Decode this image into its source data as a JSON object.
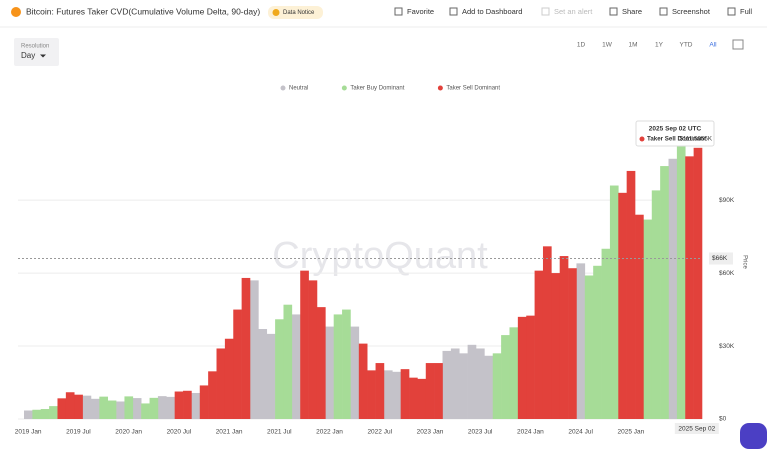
{
  "header": {
    "title": "Bitcoin: Futures Taker CVD(Cumulative Volume Delta, 90-day)",
    "badge": "Data Notice",
    "toolbar": [
      "Favorite",
      "Add to Dashboard",
      "Set an alert",
      "Share",
      "Screenshot",
      "Full"
    ]
  },
  "controls": {
    "resolution_label": "Resolution",
    "resolution_value": "Day",
    "ranges": [
      "1D",
      "1W",
      "1M",
      "1Y",
      "YTD",
      "All"
    ],
    "active_range": "All"
  },
  "watermark": "CryptoQuant",
  "chart_data": {
    "type": "bar",
    "y_title": "Price",
    "grid": true,
    "legend": "top",
    "categories": [
      "2019 Jan",
      null,
      null,
      null,
      null,
      null,
      "2019 Jul",
      null,
      null,
      null,
      null,
      null,
      "2020 Jan",
      null,
      null,
      null,
      null,
      null,
      "2020 Jul",
      null,
      null,
      null,
      null,
      null,
      "2021 Jan",
      null,
      null,
      null,
      null,
      null,
      "2021 Jul",
      null,
      null,
      null,
      null,
      null,
      "2022 Jan",
      null,
      null,
      null,
      null,
      null,
      "2022 Jul",
      null,
      null,
      null,
      null,
      null,
      "2023 Jan",
      null,
      null,
      null,
      null,
      null,
      "2023 Jul",
      null,
      null,
      null,
      null,
      null,
      "2024 Jan",
      null,
      null,
      null,
      null,
      null,
      "2024 Jul",
      null,
      null,
      null,
      null,
      null,
      "2025 Jan",
      null,
      null,
      null,
      null,
      null,
      null,
      null,
      "2025 Sep 02"
    ],
    "series": [
      {
        "name": "Neutral",
        "color": "#c4c2c9",
        "values": [
          3500,
          null,
          null,
          null,
          null,
          null,
          null,
          9600,
          8300,
          null,
          null,
          7200,
          null,
          8600,
          null,
          null,
          9400,
          9100,
          null,
          null,
          10700,
          null,
          null,
          null,
          null,
          null,
          null,
          57000,
          37000,
          35000,
          null,
          null,
          43000,
          null,
          null,
          null,
          38000,
          null,
          null,
          38000,
          null,
          null,
          null,
          20000,
          19400,
          null,
          null,
          null,
          null,
          null,
          28000,
          29000,
          27000,
          30500,
          29000,
          26000,
          null,
          null,
          null,
          null,
          null,
          null,
          null,
          null,
          null,
          null,
          64000,
          null,
          null,
          null,
          null,
          null,
          null,
          null,
          null,
          null,
          null,
          107000,
          null,
          null,
          null
        ]
      },
      {
        "name": "Taker Buy Dominant",
        "color": "#a6dc97",
        "values": [
          null,
          3800,
          4100,
          5300,
          null,
          null,
          null,
          null,
          null,
          9200,
          7600,
          null,
          9300,
          null,
          6400,
          8700,
          null,
          null,
          null,
          null,
          null,
          null,
          null,
          null,
          null,
          null,
          null,
          null,
          null,
          null,
          41000,
          47000,
          null,
          null,
          null,
          null,
          null,
          43000,
          45000,
          null,
          null,
          null,
          null,
          null,
          null,
          null,
          null,
          null,
          null,
          null,
          null,
          null,
          null,
          null,
          null,
          null,
          27000,
          34500,
          37700,
          null,
          null,
          null,
          null,
          null,
          null,
          null,
          null,
          59000,
          63000,
          70000,
          96000,
          null,
          null,
          null,
          82000,
          94000,
          104000,
          null,
          115000,
          null,
          null
        ]
      },
      {
        "name": "Taker Sell Dominant",
        "color": "#e2413b",
        "values": [
          null,
          null,
          null,
          null,
          8500,
          11000,
          10000,
          null,
          null,
          null,
          null,
          null,
          null,
          null,
          null,
          null,
          null,
          null,
          11300,
          11600,
          null,
          13800,
          19600,
          29000,
          33000,
          45000,
          58000,
          null,
          null,
          null,
          null,
          null,
          null,
          61000,
          57000,
          46000,
          null,
          null,
          null,
          null,
          31000,
          20000,
          23000,
          null,
          null,
          20500,
          17000,
          16500,
          23000,
          23000,
          null,
          null,
          null,
          null,
          null,
          null,
          null,
          null,
          null,
          42000,
          42500,
          61000,
          71000,
          60000,
          67000,
          62000,
          null,
          null,
          null,
          null,
          null,
          93000,
          102000,
          84000,
          null,
          null,
          null,
          null,
          null,
          108000,
          111505.6
        ]
      }
    ],
    "ylim": [
      0,
      125000
    ],
    "yticks": [
      {
        "value": 0,
        "label": "$0"
      },
      {
        "value": 30000,
        "label": "$30K"
      },
      {
        "value": 60000,
        "label": "$60K"
      },
      {
        "value": 90000,
        "label": "$90K"
      }
    ],
    "crosshair": {
      "value": 66000,
      "label": "$66K"
    },
    "tooltip": {
      "date": "2025 Sep 02 UTC",
      "series": "Taker Sell Dominant",
      "value": 111505.6,
      "label": "$111.5056K"
    }
  }
}
